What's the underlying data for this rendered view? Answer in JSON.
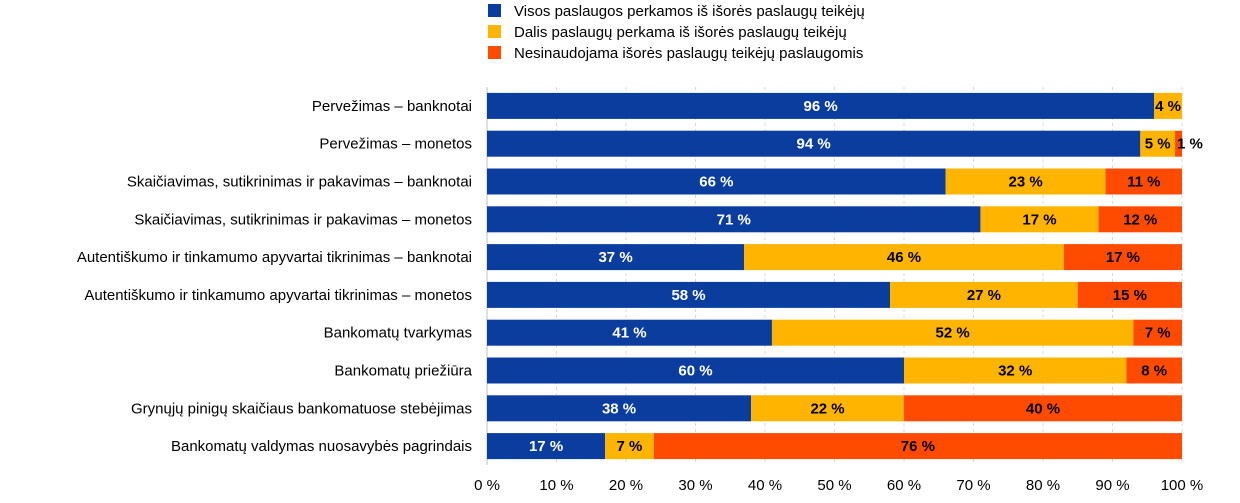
{
  "chart_data": {
    "type": "bar",
    "orientation": "horizontal",
    "stacked": true,
    "percent": true,
    "categories": [
      "Pervežimas – banknotai",
      "Pervežimas – monetos",
      "Skaičiavimas, sutikrinimas ir pakavimas – banknotai",
      "Skaičiavimas, sutikrinimas ir pakavimas – monetos",
      "Autentiškumo ir tinkamumo apyvartai tikrinimas – banknotai",
      "Autentiškumo ir tinkamumo apyvartai tikrinimas – monetos",
      "Bankomatų tvarkymas",
      "Bankomatų priežiūra",
      "Grynųjų pinigų skaičiaus bankomatuose stebėjimas",
      "Bankomatų valdymas nuosavybės pagrindais"
    ],
    "series": [
      {
        "name": "Visos paslaugos perkamos iš išorės paslaugų teikėjų",
        "color": "#0b3d9e",
        "values": [
          96,
          94,
          66,
          71,
          37,
          58,
          41,
          60,
          38,
          17
        ],
        "labels": [
          "96 %",
          "94 %",
          "66 %",
          "71 %",
          "37 %",
          "58 %",
          "41 %",
          "60 %",
          "38 %",
          "17 %"
        ]
      },
      {
        "name": "Dalis paslaugų perkama iš išorės paslaugų teikėjų",
        "color": "#ffb400",
        "values": [
          4,
          5,
          23,
          17,
          46,
          27,
          52,
          32,
          22,
          7
        ],
        "labels": [
          "4 %",
          "5 %",
          "23 %",
          "17 %",
          "46 %",
          "27 %",
          "52 %",
          "32 %",
          "22 %",
          "7 %"
        ]
      },
      {
        "name": "Nesinaudojama išorės paslaugų teikėjų paslaugomis",
        "color": "#ff4b00",
        "values": [
          0,
          1,
          11,
          12,
          17,
          15,
          7,
          8,
          40,
          76
        ],
        "labels": [
          "",
          "1 %",
          "11 %",
          "12 %",
          "17 %",
          "15 %",
          "7 %",
          "8 %",
          "40 %",
          "76 %"
        ]
      }
    ],
    "xlim": [
      0,
      100
    ],
    "x_ticks": [
      "0 %",
      "10 %",
      "20 %",
      "30 %",
      "40 %",
      "50 %",
      "60 %",
      "70 %",
      "80 %",
      "90 %",
      "100 %"
    ],
    "grid": true,
    "legend_position": "top"
  }
}
